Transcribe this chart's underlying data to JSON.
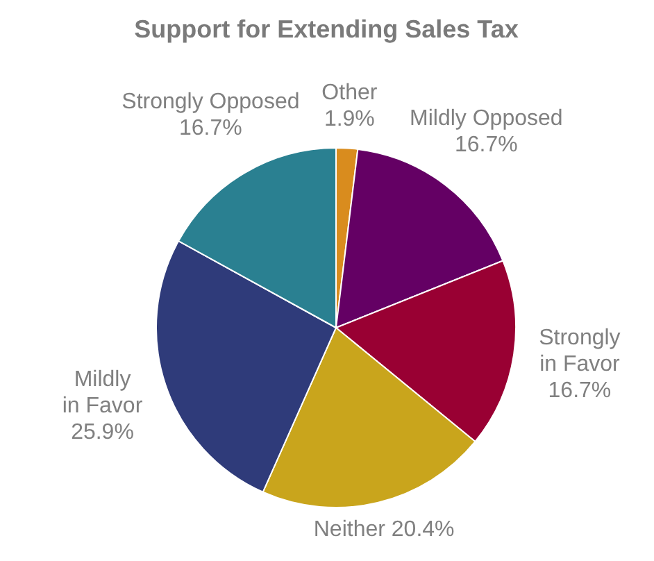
{
  "chart_data": {
    "type": "pie",
    "title": "Support for Extending Sales Tax",
    "categories": [
      "Other",
      "Mildly Opposed",
      "Strongly in Favor",
      "Neither",
      "Mildly in Favor",
      "Strongly Opposed"
    ],
    "values": [
      1.9,
      16.7,
      16.7,
      20.4,
      25.9,
      16.7
    ],
    "value_labels": [
      "1.9%",
      "16.7%",
      "16.7%",
      "20.4%",
      "25.9%",
      "16.7%"
    ],
    "colors": [
      "#d98c1e",
      "#640064",
      "#990033",
      "#c9a51c",
      "#2f3b7a",
      "#2a8091"
    ],
    "legend": false
  }
}
